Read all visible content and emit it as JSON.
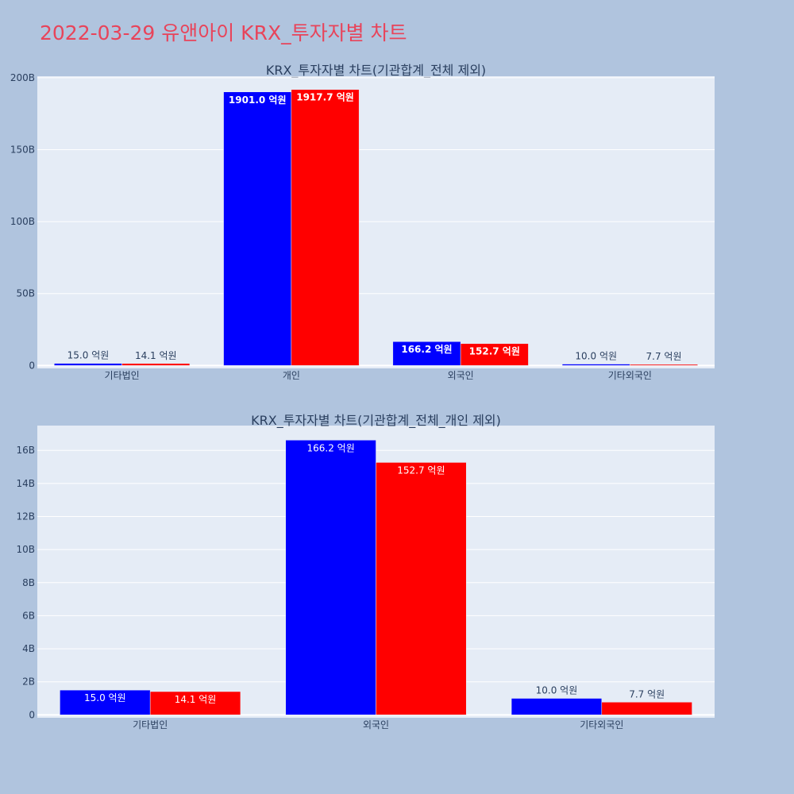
{
  "page": {
    "title": "2022-03-29 유앤아이 KRX_투자자별 차트",
    "title_color": "#e8445a",
    "background": "#b0c4de",
    "plot_background": "#e5ecf6"
  },
  "chart_data": [
    {
      "type": "bar",
      "title": "KRX_투자자별 차트(기관합계_전체 제외)",
      "categories": [
        "기타법인",
        "개인",
        "외국인",
        "기타외국인"
      ],
      "series": [
        {
          "color": "#0000ff",
          "values": [
            1500000000,
            190100000000,
            16620000000,
            1000000000
          ],
          "labels": [
            "15.0 억원",
            "1901.0 억원",
            "166.2 억원",
            "10.0 억원"
          ]
        },
        {
          "color": "#ff0000",
          "values": [
            1410000000,
            191770000000,
            15270000000,
            770000000
          ],
          "labels": [
            "14.1 억원",
            "1917.7 억원",
            "152.7 억원",
            "7.7 억원"
          ]
        }
      ],
      "ylim": [
        -2000000000,
        201000000000
      ],
      "yticks": [
        0,
        50000000000,
        100000000000,
        150000000000,
        200000000000
      ],
      "ytick_labels": [
        "0",
        "50B",
        "100B",
        "150B",
        "200B"
      ],
      "grid": true
    },
    {
      "type": "bar",
      "title": "KRX_투자자별 차트(기관합계_전체_개인 제외)",
      "categories": [
        "기타법인",
        "외국인",
        "기타외국인"
      ],
      "series": [
        {
          "color": "#0000ff",
          "values": [
            1500000000,
            16620000000,
            1000000000
          ],
          "labels": [
            "15.0 억원",
            "166.2 억원",
            "10.0 억원"
          ]
        },
        {
          "color": "#ff0000",
          "values": [
            1410000000,
            15270000000,
            770000000
          ],
          "labels": [
            "14.1 억원",
            "152.7 억원",
            "7.7 억원"
          ]
        }
      ],
      "ylim": [
        -175000000,
        17500000000
      ],
      "yticks": [
        0,
        2000000000,
        4000000000,
        6000000000,
        8000000000,
        10000000000,
        12000000000,
        14000000000,
        16000000000
      ],
      "ytick_labels": [
        "0",
        "2B",
        "4B",
        "6B",
        "8B",
        "10B",
        "12B",
        "14B",
        "16B"
      ],
      "grid": true
    }
  ]
}
